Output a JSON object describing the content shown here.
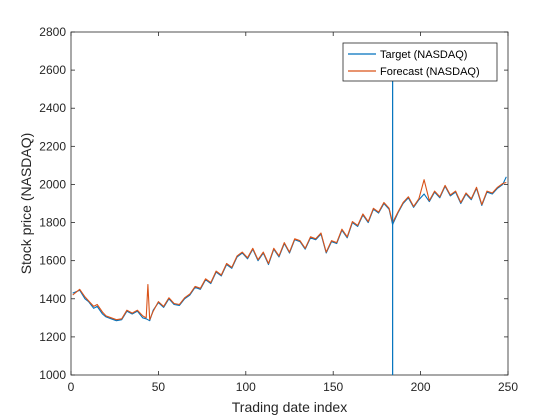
{
  "chart_data": {
    "type": "line",
    "title": "",
    "xlabel": "Trading date index",
    "ylabel": "Stock price (NASDAQ)",
    "xlim": [
      0,
      250
    ],
    "ylim": [
      1000,
      2800
    ],
    "xticks": [
      0,
      50,
      100,
      150,
      200,
      250
    ],
    "yticks": [
      1000,
      1200,
      1400,
      1600,
      1800,
      2000,
      2200,
      2400,
      2600,
      2800
    ],
    "grid": false,
    "legend_position": "top-right",
    "vertical_marker_x": 184,
    "series": [
      {
        "name": "Target (NASDAQ)",
        "color": "#0072BD",
        "x": [
          1,
          5,
          8,
          10,
          13,
          15,
          18,
          20,
          23,
          26,
          29,
          32,
          35,
          38,
          41,
          43,
          45,
          47,
          50,
          53,
          56,
          59,
          62,
          65,
          68,
          71,
          74,
          77,
          80,
          83,
          86,
          89,
          92,
          95,
          98,
          101,
          104,
          107,
          110,
          113,
          116,
          119,
          122,
          125,
          128,
          131,
          134,
          137,
          140,
          143,
          146,
          149,
          152,
          155,
          158,
          161,
          164,
          167,
          170,
          173,
          176,
          179,
          182,
          184,
          187,
          190,
          193,
          196,
          199,
          202,
          205,
          208,
          211,
          214,
          217,
          220,
          223,
          226,
          229,
          232,
          235,
          238,
          241,
          244,
          247,
          249
        ],
        "y": [
          1430,
          1445,
          1400,
          1385,
          1350,
          1360,
          1320,
          1305,
          1295,
          1285,
          1290,
          1335,
          1320,
          1335,
          1300,
          1295,
          1285,
          1340,
          1380,
          1355,
          1400,
          1370,
          1365,
          1400,
          1420,
          1460,
          1450,
          1500,
          1480,
          1540,
          1520,
          1580,
          1560,
          1620,
          1640,
          1610,
          1660,
          1600,
          1640,
          1580,
          1660,
          1620,
          1690,
          1640,
          1710,
          1700,
          1660,
          1720,
          1710,
          1740,
          1640,
          1700,
          1690,
          1760,
          1720,
          1800,
          1780,
          1840,
          1800,
          1870,
          1850,
          1900,
          1870,
          1790,
          1850,
          1900,
          1930,
          1880,
          1920,
          1950,
          1910,
          1960,
          1930,
          1990,
          1940,
          1960,
          1900,
          1950,
          1920,
          1980,
          1890,
          1960,
          1950,
          1980,
          2000,
          2040
        ]
      },
      {
        "name": "Forecast (NASDAQ)",
        "color": "#D95319",
        "x": [
          1,
          5,
          8,
          10,
          13,
          15,
          18,
          20,
          23,
          26,
          29,
          32,
          35,
          38,
          41,
          43,
          44,
          45,
          47,
          50,
          53,
          56,
          59,
          62,
          65,
          68,
          71,
          74,
          77,
          80,
          83,
          86,
          89,
          92,
          95,
          98,
          101,
          104,
          107,
          110,
          113,
          116,
          119,
          122,
          125,
          128,
          131,
          134,
          137,
          140,
          143,
          146,
          149,
          152,
          155,
          158,
          161,
          164,
          167,
          170,
          173,
          176,
          179,
          182,
          184,
          187,
          190,
          193,
          196,
          199,
          202,
          205,
          208,
          211,
          214,
          217,
          220,
          223,
          226,
          229,
          232,
          235,
          238,
          241,
          244,
          247,
          249
        ],
        "y": [
          1420,
          1450,
          1410,
          1390,
          1360,
          1370,
          1330,
          1310,
          1300,
          1290,
          1295,
          1340,
          1325,
          1340,
          1310,
          1300,
          1475,
          1290,
          1335,
          1385,
          1360,
          1405,
          1375,
          1370,
          1405,
          1425,
          1465,
          1455,
          1505,
          1485,
          1545,
          1525,
          1585,
          1565,
          1625,
          1645,
          1615,
          1665,
          1605,
          1645,
          1585,
          1665,
          1625,
          1695,
          1645,
          1715,
          1705,
          1665,
          1725,
          1715,
          1745,
          1645,
          1705,
          1695,
          1765,
          1725,
          1805,
          1785,
          1845,
          1805,
          1875,
          1855,
          1905,
          1875,
          1800,
          1855,
          1905,
          1935,
          1885,
          1925,
          2025,
          1915,
          1965,
          1935,
          1995,
          1945,
          1965,
          1905,
          1955,
          1925,
          1985,
          1895,
          1965,
          1955,
          1985,
          2005,
          2010
        ]
      }
    ]
  }
}
